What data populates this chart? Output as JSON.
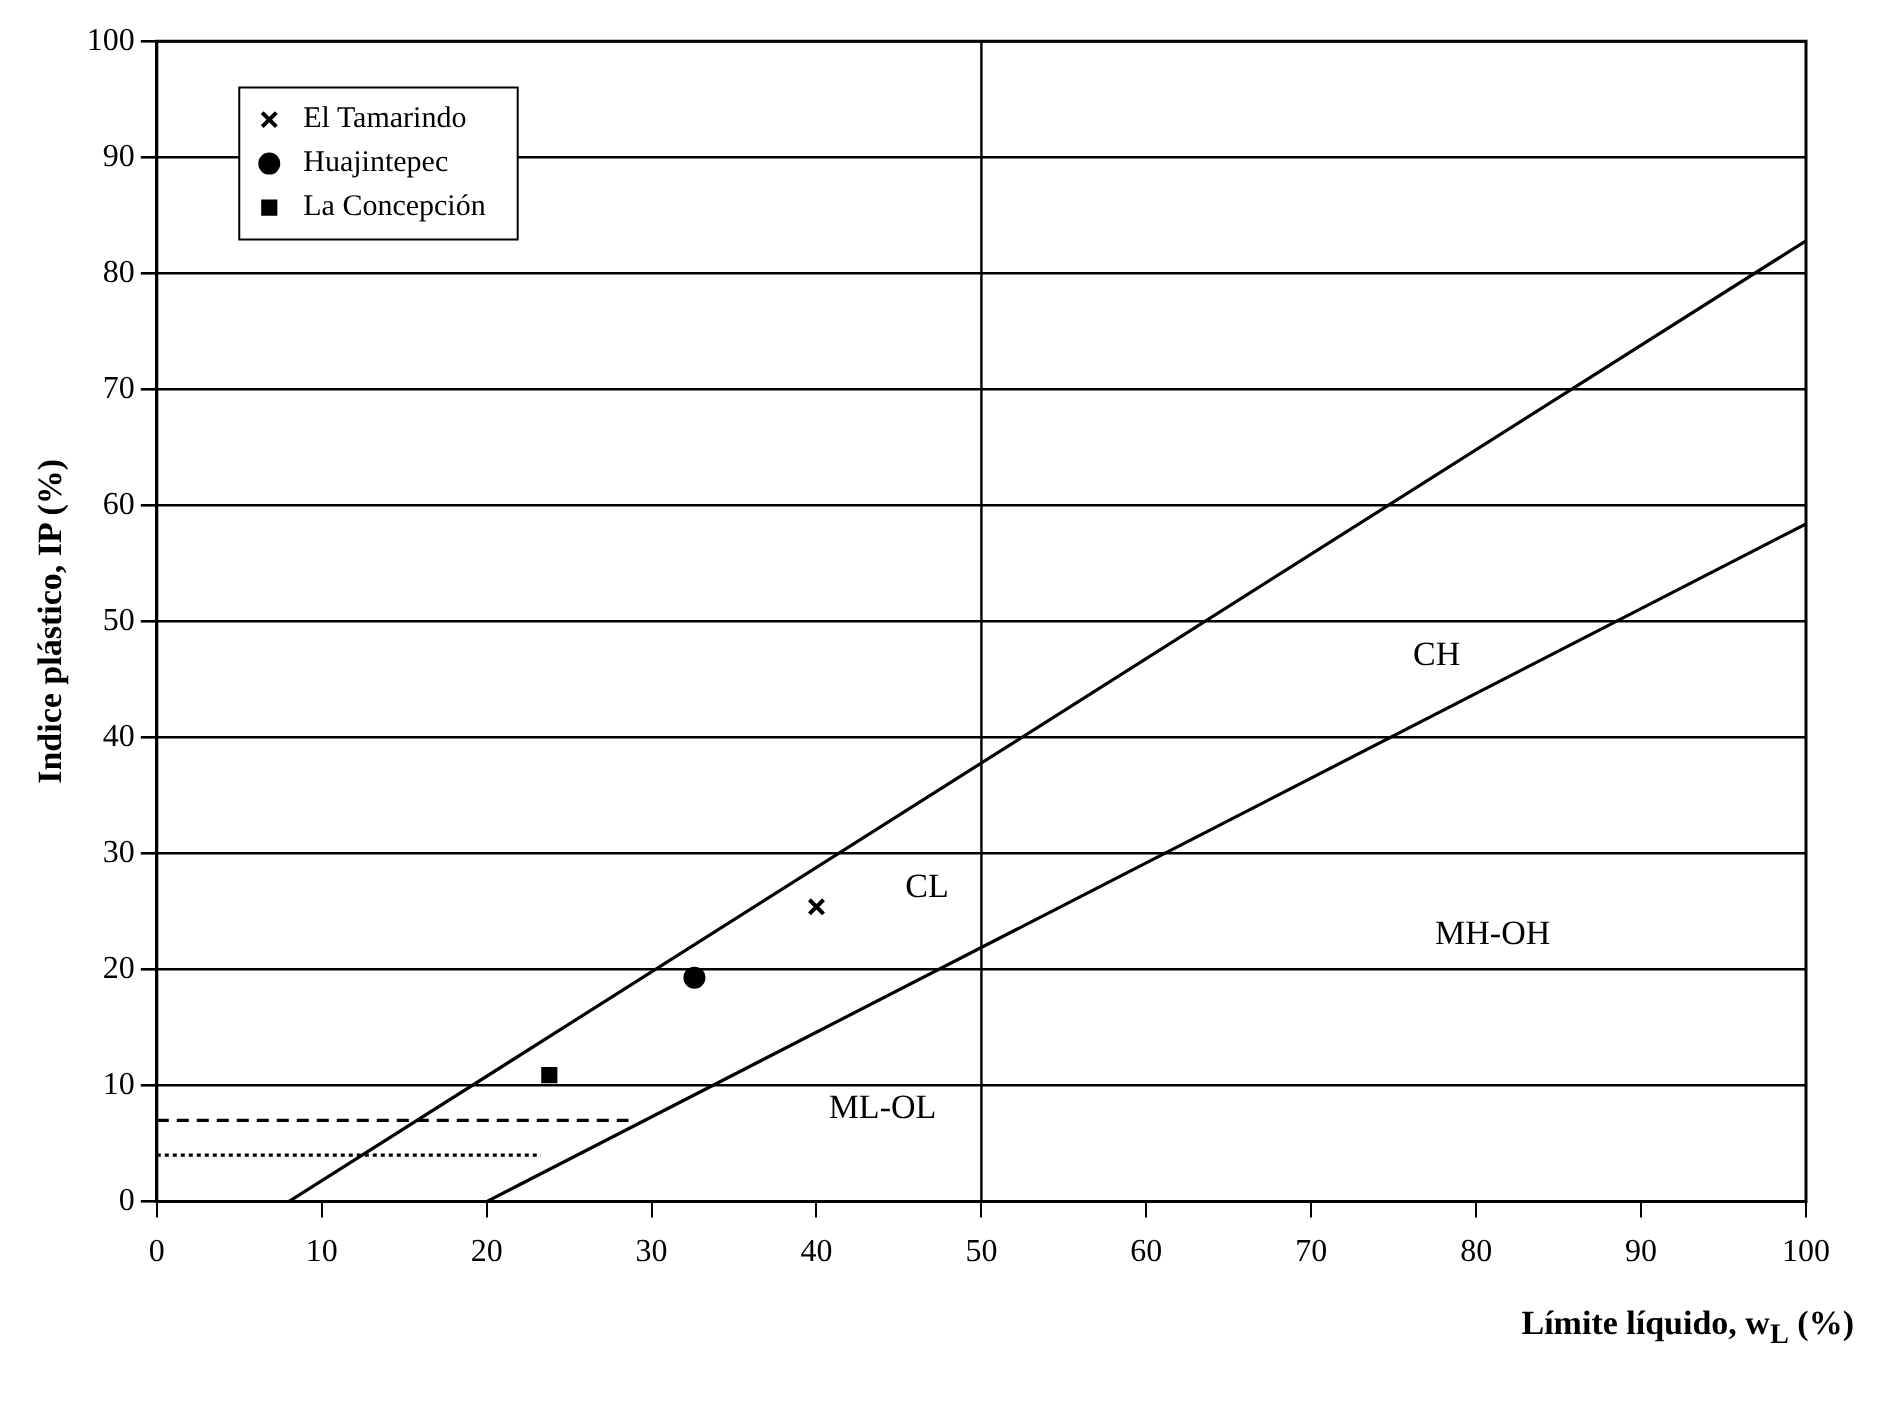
{
  "chart_data": {
    "type": "scatter",
    "xlabel": "Límite líquido, w$_{L}$ (%)",
    "ylabel": "Indice plástico, IP (%)",
    "xlim": [
      0,
      100
    ],
    "ylim": [
      0,
      100
    ],
    "xticks": [
      0,
      10,
      20,
      30,
      40,
      50,
      60,
      70,
      80,
      90,
      100
    ],
    "yticks": [
      0,
      10,
      20,
      30,
      40,
      50,
      60,
      70,
      80,
      90,
      100
    ],
    "grid": "y",
    "legend": "top left",
    "series": [
      {
        "name": "El Tamarindo",
        "color": "#000000",
        "marker": "cross",
        "x": [
          40
        ],
        "values": [
          25.4
        ]
      },
      {
        "name": "Huajintepec",
        "color": "#000000",
        "marker": "circle",
        "x": [
          32.6
        ],
        "values": [
          19.3
        ]
      },
      {
        "name": "La Concepción",
        "color": "#000000",
        "marker": "square",
        "x": [
          23.8
        ],
        "values": [
          10.9
        ]
      },
      {
        "type": "line",
        "color": "#000000",
        "marker": "none",
        "line_style": "solid",
        "x": [
          8,
          100
        ],
        "values": [
          0,
          82.8
        ]
      },
      {
        "type": "line",
        "color": "#000000",
        "marker": "none",
        "line_style": "solid",
        "x": [
          20,
          100
        ],
        "values": [
          0,
          58.4
        ]
      },
      {
        "type": "line",
        "color": "#000000",
        "marker": "none",
        "line_style": "dashed",
        "x": [
          0,
          28.6
        ],
        "values": [
          7,
          7
        ]
      },
      {
        "type": "line",
        "color": "#000000",
        "marker": "none",
        "line_style": "dotted",
        "x": [
          0,
          23.3
        ],
        "values": [
          4,
          4
        ]
      }
    ],
    "ref_lines": [
      {
        "axis": "x",
        "value": 50
      }
    ],
    "annotations": [
      "CH",
      "CL",
      "MH-OH",
      "ML-OL"
    ]
  }
}
